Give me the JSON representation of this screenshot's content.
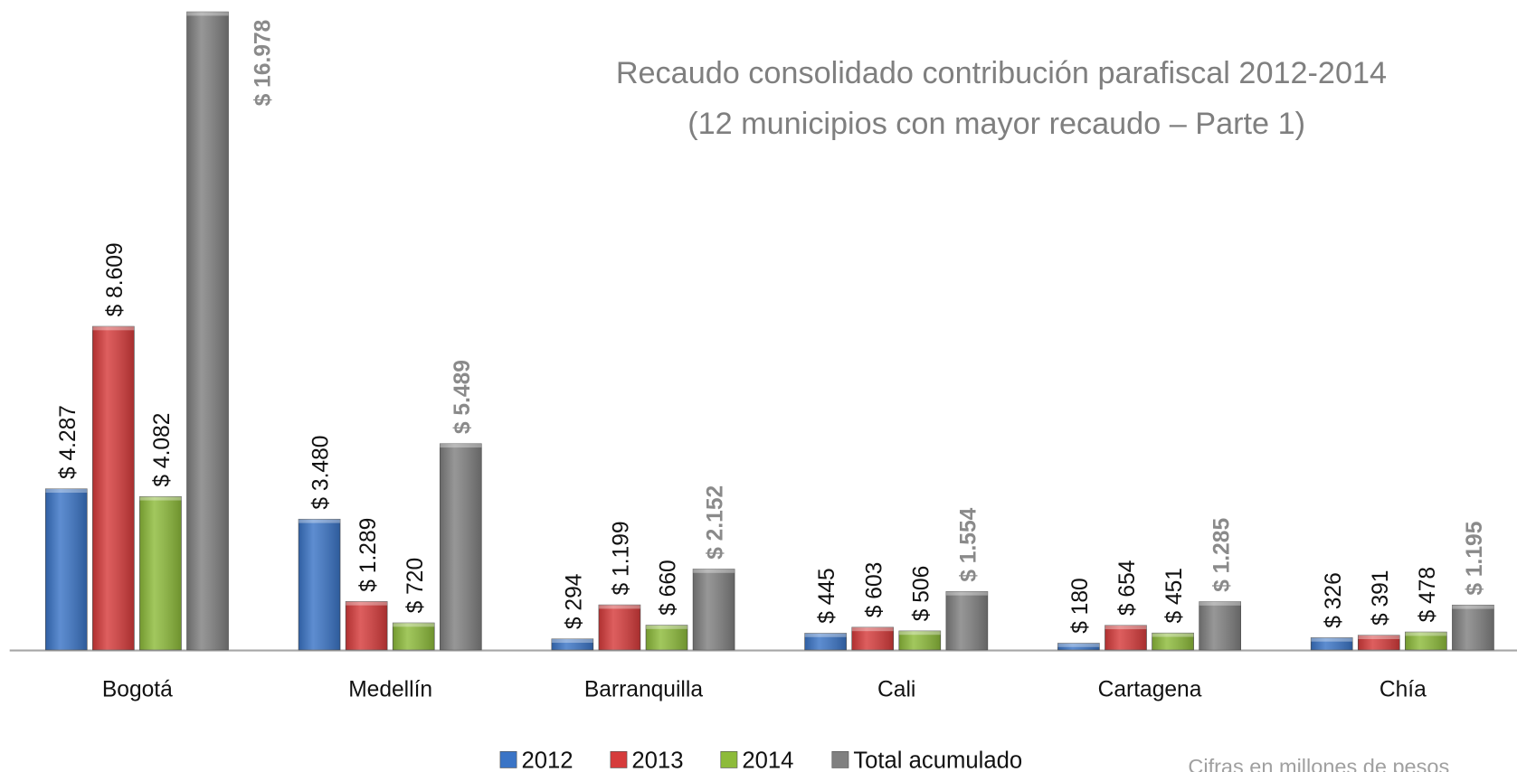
{
  "chart_data": {
    "type": "bar",
    "title": "Recaudo consolidado contribución parafiscal 2012-2014",
    "subtitle": "(12 municipios con mayor recaudo – Parte 1)",
    "note": "Cifras en millones de pesos",
    "categories": [
      "Bogotá",
      "Medellín",
      "Barranquilla",
      "Cali",
      "Cartagena",
      "Chía"
    ],
    "series": [
      {
        "name": "2012",
        "color": "#3a74c6",
        "values": [
          4287,
          3480,
          294,
          445,
          180,
          326
        ],
        "value_labels": [
          "$ 4.287",
          "$ 3.480",
          "$ 294",
          "$ 445",
          "$ 180",
          "$ 326"
        ]
      },
      {
        "name": "2013",
        "color": "#d63b3b",
        "values": [
          8609,
          1289,
          1199,
          603,
          654,
          391
        ],
        "value_labels": [
          "$ 8.609",
          "$ 1.289",
          "$ 1.199",
          "$ 603",
          "$ 654",
          "$ 391"
        ]
      },
      {
        "name": "2014",
        "color": "#8dbb3a",
        "values": [
          4082,
          720,
          660,
          506,
          451,
          478
        ],
        "value_labels": [
          "$ 4.082",
          "$ 720",
          "$ 660",
          "$ 506",
          "$ 451",
          "$ 478"
        ]
      },
      {
        "name": "Total acumulado",
        "color": "#808080",
        "values": [
          16978,
          5489,
          2152,
          1554,
          1285,
          1195
        ],
        "value_labels": [
          "$ 16.978",
          "$ 5.489",
          "$ 2.152",
          "$ 1.554",
          "$ 1.285",
          "$ 1.195"
        ]
      }
    ]
  }
}
